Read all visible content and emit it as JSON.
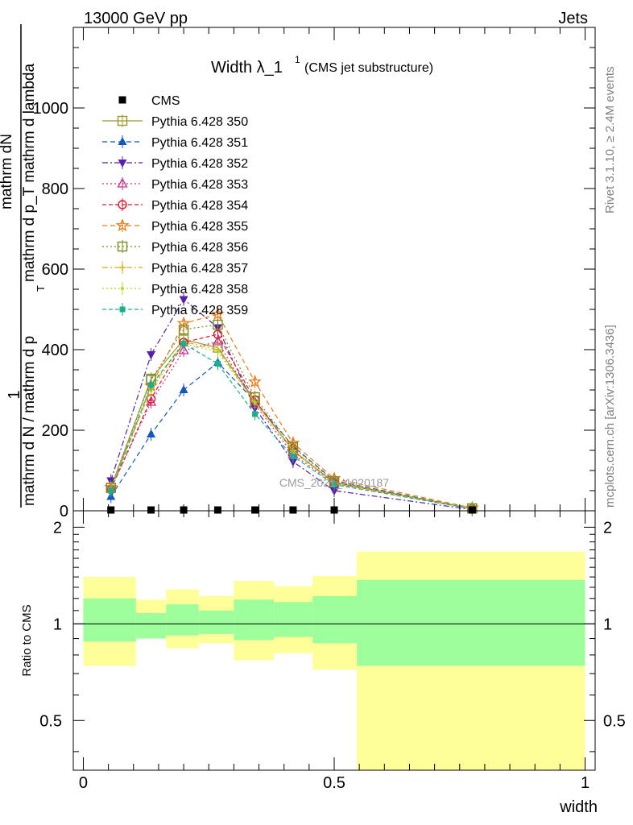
{
  "header": {
    "left": "13000 GeV pp",
    "right": "Jets"
  },
  "side_text": {
    "rivet": "Rivet 3.1.10, ≥ 2.4M events",
    "mcplots": "mcplots.cern.ch [arXiv:1306.3436]"
  },
  "chart_data": [
    {
      "type": "line",
      "title": "Width λ_1",
      "title_sup": "1",
      "subtitle": "(CMS jet substructure)",
      "watermark": "CMS_2021_I1920187",
      "ylabel_top": "1",
      "ylabel_num": "mathrm dN",
      "ylabel_den1": "mathrm d N / mathrm d p",
      "ylabel_den_sub": "T",
      "ylabel_den2": "mathrm d p_T mathrm d lambda",
      "ylim": [
        0,
        1200
      ],
      "xlim": [
        -0.02,
        1.02
      ],
      "yticks": [
        0,
        200,
        400,
        600,
        800,
        1000
      ],
      "ytick_labels": [
        "0",
        "200",
        "400",
        "600",
        "800",
        "1000"
      ],
      "legend_position": "top-left",
      "x": [
        0.055,
        0.135,
        0.2,
        0.268,
        0.342,
        0.418,
        0.5,
        0.775
      ],
      "series": [
        {
          "name": "CMS",
          "color": "#000000",
          "marker": "square-filled",
          "dash": "none",
          "values": [
            1,
            1,
            2,
            1,
            1,
            0.5,
            0.5,
            0.2
          ]
        },
        {
          "name": "Pythia 6.428 350",
          "color": "#9a9a2c",
          "marker": "square-open",
          "dash": "solid",
          "values": [
            57,
            328,
            425,
            405,
            273,
            150,
            70,
            6
          ]
        },
        {
          "name": "Pythia 6.428 351",
          "color": "#1357c0",
          "marker": "triangle-up-filled",
          "dash": "6,4",
          "values": [
            35,
            190,
            300,
            368,
            272,
            160,
            75,
            5
          ]
        },
        {
          "name": "Pythia 6.428 352",
          "color": "#5a1fa8",
          "marker": "triangle-down-filled",
          "dash": "7,3,2,3",
          "values": [
            75,
            388,
            525,
            455,
            255,
            122,
            50,
            3
          ]
        },
        {
          "name": "Pythia 6.428 353",
          "color": "#c8308c",
          "marker": "triangle-up-open",
          "dash": "2,3",
          "values": [
            55,
            270,
            398,
            420,
            265,
            140,
            68,
            5
          ]
        },
        {
          "name": "Pythia 6.428 354",
          "color": "#e0182a",
          "marker": "circle-open",
          "dash": "5,3",
          "values": [
            53,
            278,
            418,
            438,
            275,
            148,
            70,
            5
          ]
        },
        {
          "name": "Pythia 6.428 355",
          "color": "#f07818",
          "marker": "star-open",
          "dash": "6,4",
          "values": [
            58,
            310,
            465,
            488,
            320,
            168,
            80,
            7
          ]
        },
        {
          "name": "Pythia 6.428 356",
          "color": "#7a8c1e",
          "marker": "square-open",
          "dash": "2,3",
          "values": [
            57,
            325,
            450,
            462,
            282,
            158,
            73,
            6
          ]
        },
        {
          "name": "Pythia 6.428 357",
          "color": "#d4b018",
          "marker": "tri-point",
          "dash": "7,3,2,3",
          "values": [
            56,
            305,
            420,
            400,
            270,
            150,
            68,
            6
          ]
        },
        {
          "name": "Pythia 6.428 358",
          "color": "#b8d41c",
          "marker": "dot",
          "dash": "2,3",
          "values": [
            55,
            300,
            415,
            395,
            268,
            148,
            68,
            6
          ]
        },
        {
          "name": "Pythia 6.428 359",
          "color": "#18b090",
          "marker": "square-filled-small",
          "dash": "5,3",
          "values": [
            50,
            312,
            415,
            365,
            240,
            135,
            65,
            5
          ]
        }
      ]
    },
    {
      "type": "area",
      "ylabel": "Ratio to CMS",
      "xlabel": "width",
      "xlim": [
        -0.02,
        1.02
      ],
      "ylim": [
        0.35,
        2.25
      ],
      "xticks": [
        0,
        0.5,
        1
      ],
      "xtick_labels": [
        "0",
        "0.5",
        "1"
      ],
      "yticks": [
        0.5,
        1,
        2
      ],
      "ytick_labels": [
        "0.5",
        "1",
        "2"
      ],
      "reference_line": 1.0,
      "bins": [
        {
          "x0": 0.0,
          "x1": 0.105,
          "inner_lo": 0.88,
          "inner_hi": 1.2,
          "outer_lo": 0.74,
          "outer_hi": 1.4
        },
        {
          "x0": 0.105,
          "x1": 0.165,
          "inner_lo": 0.9,
          "inner_hi": 1.08,
          "outer_lo": 0.9,
          "outer_hi": 1.19
        },
        {
          "x0": 0.165,
          "x1": 0.23,
          "inner_lo": 0.92,
          "inner_hi": 1.15,
          "outer_lo": 0.84,
          "outer_hi": 1.28
        },
        {
          "x0": 0.23,
          "x1": 0.3,
          "inner_lo": 0.93,
          "inner_hi": 1.1,
          "outer_lo": 0.87,
          "outer_hi": 1.22
        },
        {
          "x0": 0.3,
          "x1": 0.38,
          "inner_lo": 0.89,
          "inner_hi": 1.19,
          "outer_lo": 0.77,
          "outer_hi": 1.36
        },
        {
          "x0": 0.38,
          "x1": 0.457,
          "inner_lo": 0.91,
          "inner_hi": 1.17,
          "outer_lo": 0.81,
          "outer_hi": 1.31
        },
        {
          "x0": 0.457,
          "x1": 0.545,
          "inner_lo": 0.87,
          "inner_hi": 1.22,
          "outer_lo": 0.72,
          "outer_hi": 1.41
        },
        {
          "x0": 0.545,
          "x1": 1.0,
          "inner_lo": 0.74,
          "inner_hi": 1.37,
          "outer_lo": 0.35,
          "outer_hi": 1.68
        }
      ],
      "colors": {
        "inner": "#9cff9c",
        "outer": "#ffff99"
      }
    }
  ]
}
